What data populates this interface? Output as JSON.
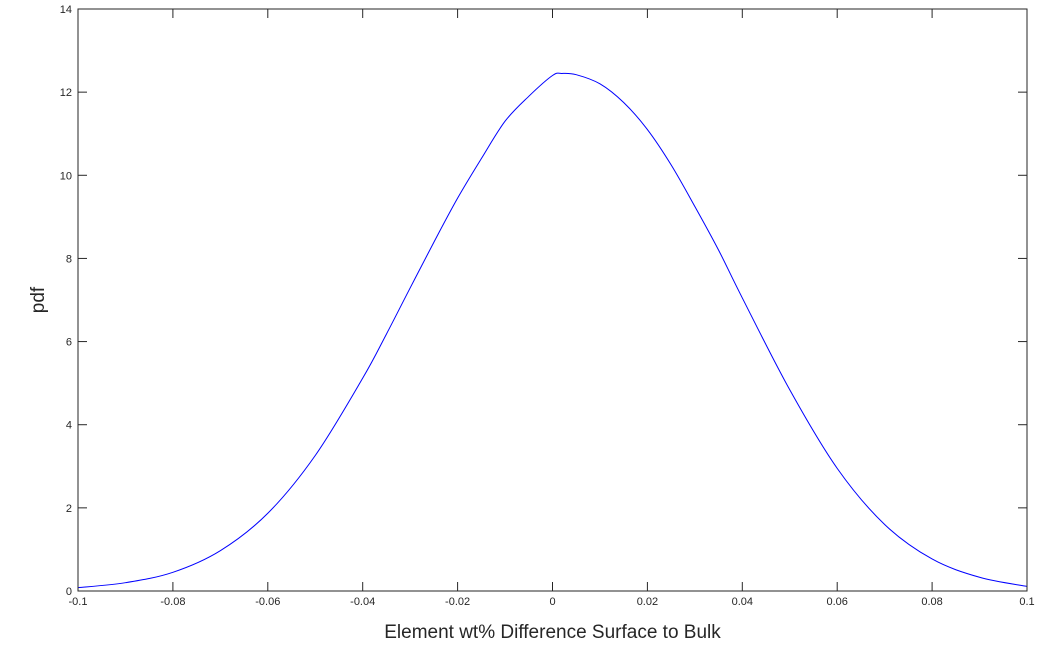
{
  "chart_data": {
    "type": "line",
    "title": "",
    "xlabel": "Element wt% Difference Surface to Bulk",
    "ylabel": "pdf",
    "xlim": [
      -0.1,
      0.1
    ],
    "ylim": [
      0,
      14
    ],
    "x_ticks": [
      "-0.1",
      "-0.08",
      "-0.06",
      "-0.04",
      "-0.02",
      "0",
      "0.02",
      "0.04",
      "0.06",
      "0.08",
      "0.1"
    ],
    "y_ticks": [
      "0",
      "2",
      "4",
      "6",
      "8",
      "10",
      "12",
      "14"
    ],
    "grid": false,
    "series": [
      {
        "color": "#0000ff",
        "x": [
          -0.1,
          -0.09,
          -0.08,
          -0.07,
          -0.06,
          -0.05,
          -0.04,
          -0.035,
          -0.03,
          -0.025,
          -0.02,
          -0.015,
          -0.01,
          -0.005,
          0,
          0.002,
          0.005,
          0.01,
          0.015,
          0.02,
          0.025,
          0.03,
          0.035,
          0.04,
          0.05,
          0.06,
          0.07,
          0.08,
          0.09,
          0.1
        ],
        "y": [
          0.08,
          0.2,
          0.45,
          0.97,
          1.87,
          3.26,
          5.12,
          6.18,
          7.29,
          8.39,
          9.45,
          10.4,
          11.3,
          11.9,
          12.4,
          12.45,
          12.42,
          12.2,
          11.75,
          11.1,
          10.25,
          9.25,
          8.2,
          7.05,
          4.84,
          2.95,
          1.6,
          0.77,
          0.33,
          0.11
        ]
      }
    ]
  }
}
